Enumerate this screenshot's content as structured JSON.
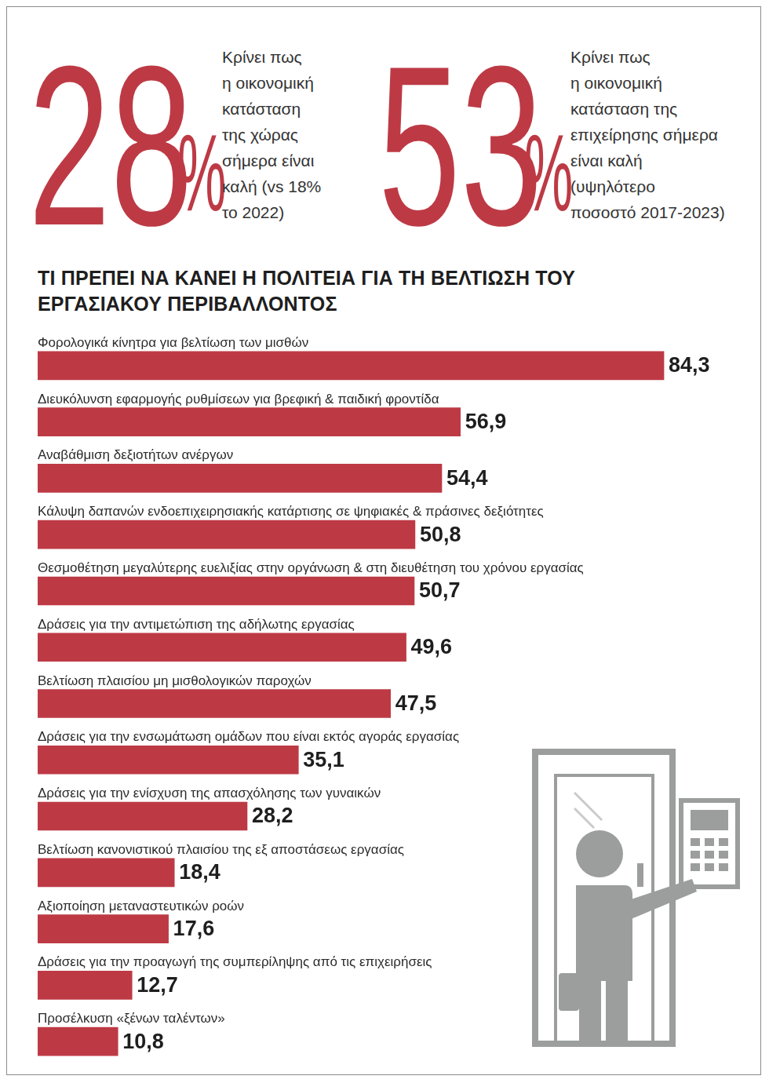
{
  "stats": [
    {
      "value": 28,
      "unit": "%",
      "text": [
        "Κρίνει πως",
        "η οικονομική",
        "κατάσταση",
        "της χώρας",
        "σήμερα είναι",
        "καλή (vs 18%",
        "το 2022)"
      ]
    },
    {
      "value": 53,
      "unit": "%",
      "text": [
        "Κρίνει πως",
        "η οικονομική",
        "κατάσταση της",
        "επιχείρησης σήμερα",
        "είναι καλή",
        "(υψηλότερο",
        "ποσοστό 2017-2023)"
      ]
    }
  ],
  "chart_data": {
    "type": "bar",
    "title": "ΤΙ ΠΡΕΠΕΙ ΝΑ ΚΑΝΕΙ Η ΠΟΛΙΤΕΙΑ ΓΙΑ ΤΗ ΒΕΛΤΙΩΣΗ ΤΟΥ ΕΡΓΑΣΙΑΚΟΥ ΠΕΡΙΒΑΛΛΟΝΤΟΣ",
    "orientation": "horizontal",
    "categories": [
      "Φορολογικά κίνητρα για βελτίωση των μισθών",
      "Διευκόλυνση εφαρμογής ρυθμίσεων για βρεφική & παιδική φροντίδα",
      "Αναβάθμιση δεξιοτήτων ανέργων",
      "Κάλυψη δαπανών ενδοεπιχειρησιακής κατάρτισης σε ψηφιακές & πράσινες δεξιότητες",
      "Θεσμοθέτηση μεγαλύτερης ευελιξίας στην οργάνωση & στη διευθέτηση του χρόνου εργασίας",
      "Δράσεις για την αντιμετώπιση της αδήλωτης εργασίας",
      "Βελτίωση πλαισίου μη μισθολογικών παροχών",
      "Δράσεις για την ενσωμάτωση ομάδων που είναι εκτός αγοράς εργασίας",
      "Δράσεις για την ενίσχυση της απασχόλησης των γυναικών",
      "Βελτίωση κανονιστικού πλαισίου της εξ αποστάσεως εργασίας",
      "Αξιοποίηση μεταναστευτικών ροών",
      "Δράσεις για την προαγωγή της συμπερίληψης από τις επιχειρήσεις",
      "Προσέλκυση «ξένων ταλέντων»"
    ],
    "values": [
      84.3,
      56.9,
      54.4,
      50.8,
      50.7,
      49.6,
      47.5,
      35.1,
      28.2,
      18.4,
      17.6,
      12.7,
      10.8
    ],
    "value_labels": [
      "84,3",
      "56,9",
      "54,4",
      "50,8",
      "50,7",
      "49,6",
      "47,5",
      "35,1",
      "28,2",
      "18,4",
      "17,6",
      "12,7",
      "10,8"
    ],
    "color": "#bd3a45",
    "xlim": [
      0,
      90
    ],
    "grid": false,
    "tick_labels": false,
    "data_labels": true
  }
}
